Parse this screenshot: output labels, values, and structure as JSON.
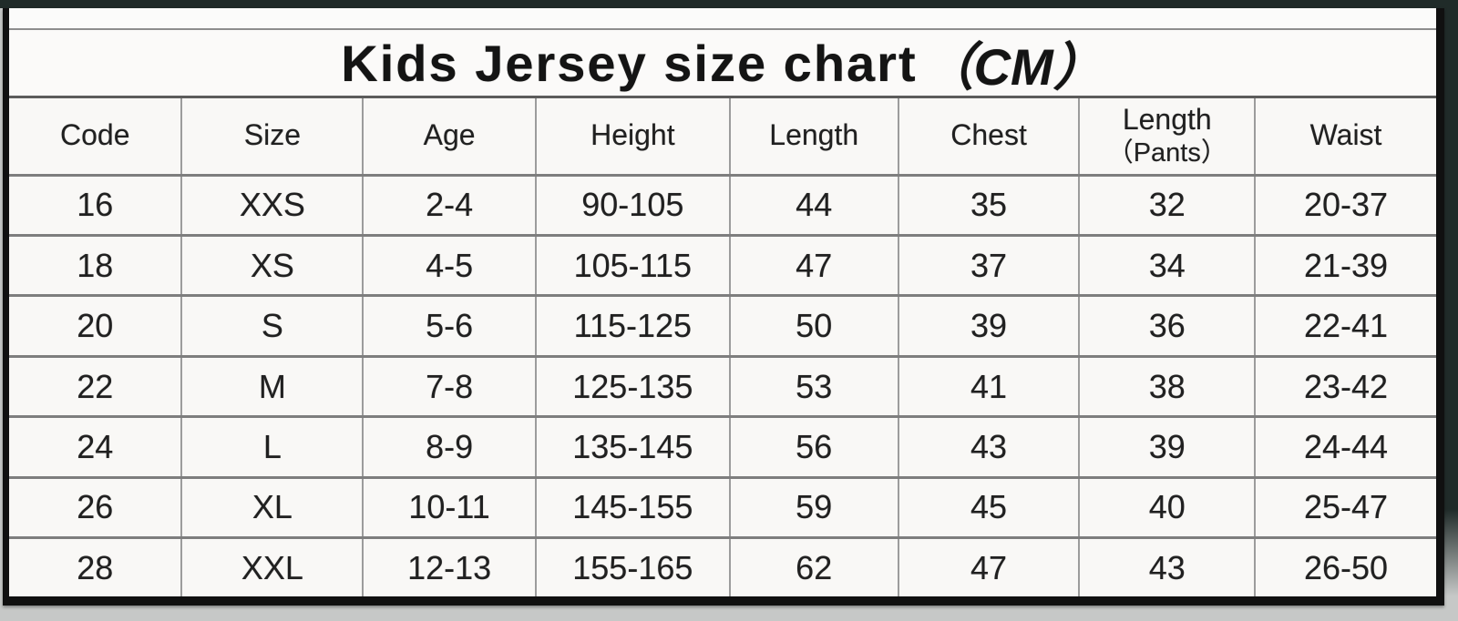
{
  "title": {
    "main": "Kids Jersey size chart",
    "unit": "（CM）"
  },
  "table": {
    "headers": [
      {
        "label": "Code"
      },
      {
        "label": "Size"
      },
      {
        "label": "Age"
      },
      {
        "label": "Height"
      },
      {
        "label": "Length"
      },
      {
        "label": "Chest"
      },
      {
        "label": "Length",
        "sub": "（Pants）"
      },
      {
        "label": "Waist"
      }
    ],
    "rows": [
      [
        "16",
        "XXS",
        "2-4",
        "90-105",
        "44",
        "35",
        "32",
        "20-37"
      ],
      [
        "18",
        "XS",
        "4-5",
        "105-115",
        "47",
        "37",
        "34",
        "21-39"
      ],
      [
        "20",
        "S",
        "5-6",
        "115-125",
        "50",
        "39",
        "36",
        "22-41"
      ],
      [
        "22",
        "M",
        "7-8",
        "125-135",
        "53",
        "41",
        "38",
        "23-42"
      ],
      [
        "24",
        "L",
        "8-9",
        "135-145",
        "56",
        "43",
        "39",
        "24-44"
      ],
      [
        "26",
        "XL",
        "10-11",
        "145-155",
        "59",
        "45",
        "40",
        "25-47"
      ],
      [
        "28",
        "XXL",
        "12-13",
        "155-165",
        "62",
        "47",
        "43",
        "26-50"
      ]
    ]
  },
  "colors": {
    "photo_margin_dark": "#202b29",
    "photo_margin_light": "#c6c8c7",
    "sheet_background": "#f9f8f6",
    "grid_line": "#8d8d8d",
    "outer_border": "#101010",
    "text": "#202020"
  },
  "chart_data": {
    "type": "table",
    "title": "Kids Jersey size chart （CM）",
    "columns": [
      "Code",
      "Size",
      "Age",
      "Height",
      "Length",
      "Chest",
      "Length（Pants）",
      "Waist"
    ],
    "rows": [
      [
        "16",
        "XXS",
        "2-4",
        "90-105",
        "44",
        "35",
        "32",
        "20-37"
      ],
      [
        "18",
        "XS",
        "4-5",
        "105-115",
        "47",
        "37",
        "34",
        "21-39"
      ],
      [
        "20",
        "S",
        "5-6",
        "115-125",
        "50",
        "39",
        "36",
        "22-41"
      ],
      [
        "22",
        "M",
        "7-8",
        "125-135",
        "53",
        "41",
        "38",
        "23-42"
      ],
      [
        "24",
        "L",
        "8-9",
        "135-145",
        "56",
        "43",
        "39",
        "24-44"
      ],
      [
        "26",
        "XL",
        "10-11",
        "145-155",
        "59",
        "45",
        "40",
        "25-47"
      ],
      [
        "28",
        "XXL",
        "12-13",
        "155-165",
        "62",
        "47",
        "43",
        "26-50"
      ]
    ],
    "units": "CM"
  }
}
